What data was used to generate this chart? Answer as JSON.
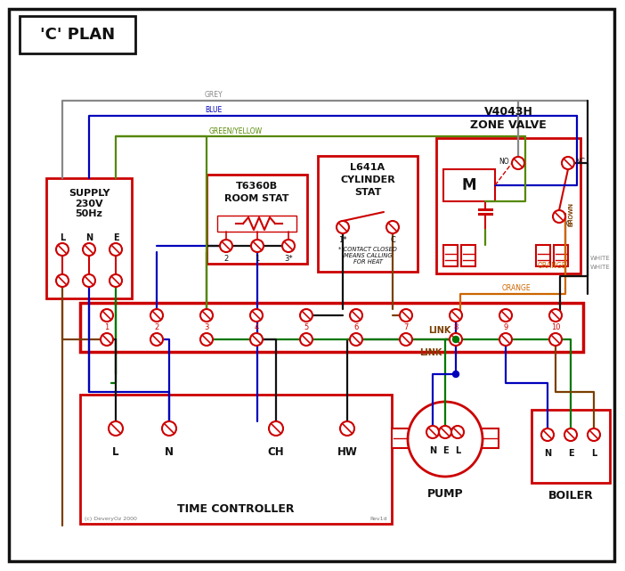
{
  "bg": "#ffffff",
  "red": "#cc0000",
  "blue": "#0000bb",
  "green": "#007700",
  "black": "#111111",
  "brown": "#7B3F00",
  "grey": "#888888",
  "orange": "#cc6600",
  "green_yellow": "#558800",
  "title": "'C' PLAN",
  "zone_valve_lbl": "V4043H\nZONE VALVE",
  "room_stat_lbl": "T6360B\nROOM STAT",
  "cyl_stat_lbl": "L641A\nCYLINDER\nSTAT",
  "tc_lbl": "TIME CONTROLLER",
  "tc_terminals": [
    "L",
    "N",
    "CH",
    "HW"
  ],
  "pump_lbl": "PUMP",
  "boiler_lbl": "BOILER",
  "terms": [
    "1",
    "2",
    "3",
    "4",
    "5",
    "6",
    "7",
    "8",
    "9",
    "10"
  ],
  "supply_lbl": "SUPPLY\n230V\n50Hz",
  "footnote": "* CONTACT CLOSED\nMEANS CALLING\nFOR HEAT",
  "copyright": "(c) DeveryOz 2000",
  "revision": "Rev1d"
}
